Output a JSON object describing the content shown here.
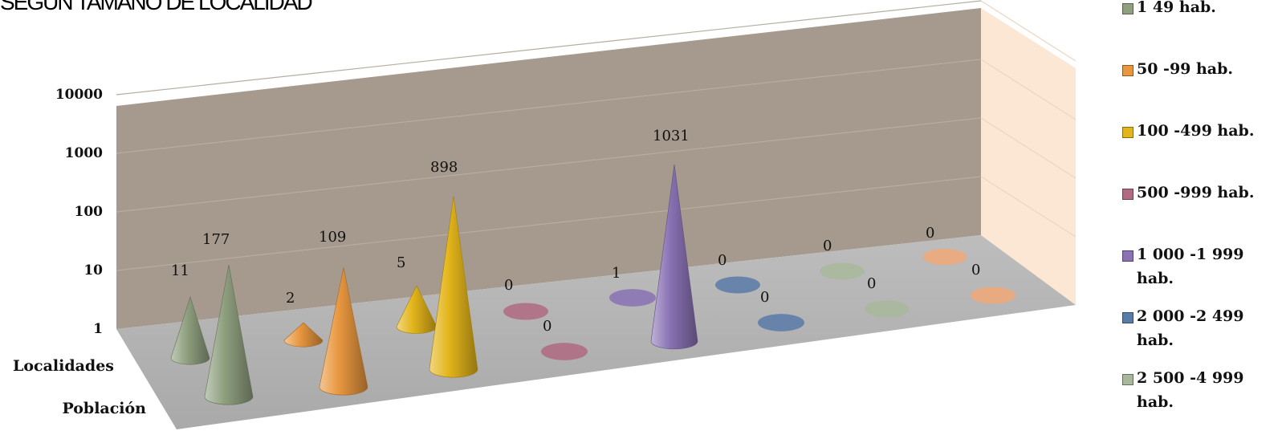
{
  "chart_data": {
    "type": "bar",
    "shape": "3d-cone",
    "title": "SEGUN TAMAÑO DE LOCALIDAD",
    "categories": [
      "Localidades",
      "Población"
    ],
    "y_scale": "log",
    "ylim": [
      1,
      10000
    ],
    "y_ticks": [
      "1",
      "10",
      "100",
      "1000",
      "10000"
    ],
    "legend_position": "right",
    "series": [
      {
        "name": "1  49 hab.",
        "color": "#8fa07f",
        "values": [
          11,
          177
        ]
      },
      {
        "name": "50 -99 hab.",
        "color": "#e8973f",
        "values": [
          2,
          109
        ]
      },
      {
        "name": "100 -499 hab.",
        "color": "#e3b51a",
        "values": [
          5,
          898
        ]
      },
      {
        "name": "500 -999 hab.",
        "color": "#b06a82",
        "values": [
          0,
          0
        ]
      },
      {
        "name": "1 000 -1 999 hab.",
        "color": "#8a72b4",
        "values": [
          1,
          1031
        ]
      },
      {
        "name": "2 000 -2 499 hab.",
        "color": "#5a7aa8",
        "values": [
          0,
          0
        ]
      },
      {
        "name": "2 500 -4 999 hab.",
        "color": "#a9b89c",
        "values": [
          0,
          0
        ]
      },
      {
        "name": "",
        "color": "#f0a878",
        "values": [
          0,
          0
        ]
      }
    ]
  }
}
